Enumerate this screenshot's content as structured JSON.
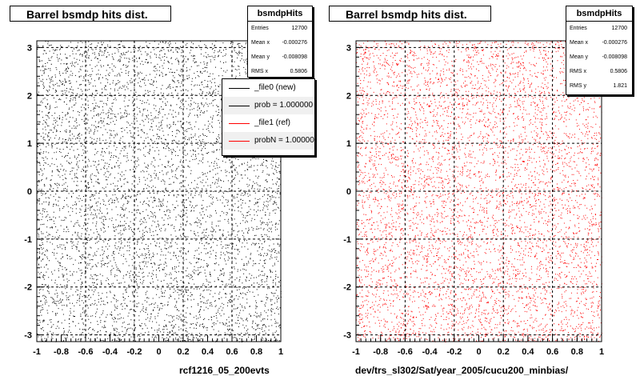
{
  "colors": {
    "left_markers": "#000000",
    "right_markers": "#ff0000",
    "grid": "#000000"
  },
  "chart_data": [
    {
      "type": "scatter",
      "title": "Barrel bsmdp hits dist.",
      "xlabel": "rcf1216_05_200evts",
      "ylabel": "",
      "xlim": [
        -1,
        1
      ],
      "ylim": [
        -3.14,
        3.14
      ],
      "x_ticks": [
        "-1",
        "-0.8",
        "-0.6",
        "-0.4",
        "-0.2",
        "0",
        "0.2",
        "0.4",
        "0.6",
        "0.8",
        "1"
      ],
      "y_ticks": [
        "-3",
        "-2",
        "-1",
        "0",
        "1",
        "2",
        "3"
      ],
      "grid": true,
      "marker_color": "#000000",
      "distribution": "uniform",
      "stats": {
        "name": "bsmdpHits",
        "rows": [
          {
            "key": "Entries",
            "value": "12700"
          },
          {
            "key": "Mean x",
            "value": "-0.000276"
          },
          {
            "key": "Mean y",
            "value": "-0.008098"
          },
          {
            "key": "RMS x",
            "value": "0.5806"
          }
        ]
      },
      "legend": {
        "position": "top-right",
        "entries": [
          {
            "label": "_file0 (new)",
            "color": "#000000"
          },
          {
            "label": "prob = 1.000000",
            "color": "#000000"
          },
          {
            "label": "_file1 (ref)",
            "color": "#ff0000"
          },
          {
            "label": "probN = 1.000000",
            "color": "#ff0000"
          }
        ]
      }
    },
    {
      "type": "scatter",
      "title": "Barrel bsmdp hits dist.",
      "xlabel": "dev/trs_sl302/Sat/year_2005/cucu200_minbias/",
      "ylabel": "",
      "xlim": [
        -1,
        1
      ],
      "ylim": [
        -3.14,
        3.14
      ],
      "x_ticks": [
        "-1",
        "-0.8",
        "-0.6",
        "-0.4",
        "-0.2",
        "0",
        "0.2",
        "0.4",
        "0.6",
        "0.8",
        "1"
      ],
      "y_ticks": [
        "-3",
        "-2",
        "-1",
        "0",
        "1",
        "2",
        "3"
      ],
      "grid": true,
      "marker_color": "#ff0000",
      "distribution": "uniform",
      "stats": {
        "name": "bsmdpHits",
        "rows": [
          {
            "key": "Entries",
            "value": "12700"
          },
          {
            "key": "Mean x",
            "value": "-0.000276"
          },
          {
            "key": "Mean y",
            "value": "-0.008098"
          },
          {
            "key": "RMS x",
            "value": "0.5806"
          },
          {
            "key": "RMS y",
            "value": "1.821"
          }
        ]
      }
    }
  ]
}
